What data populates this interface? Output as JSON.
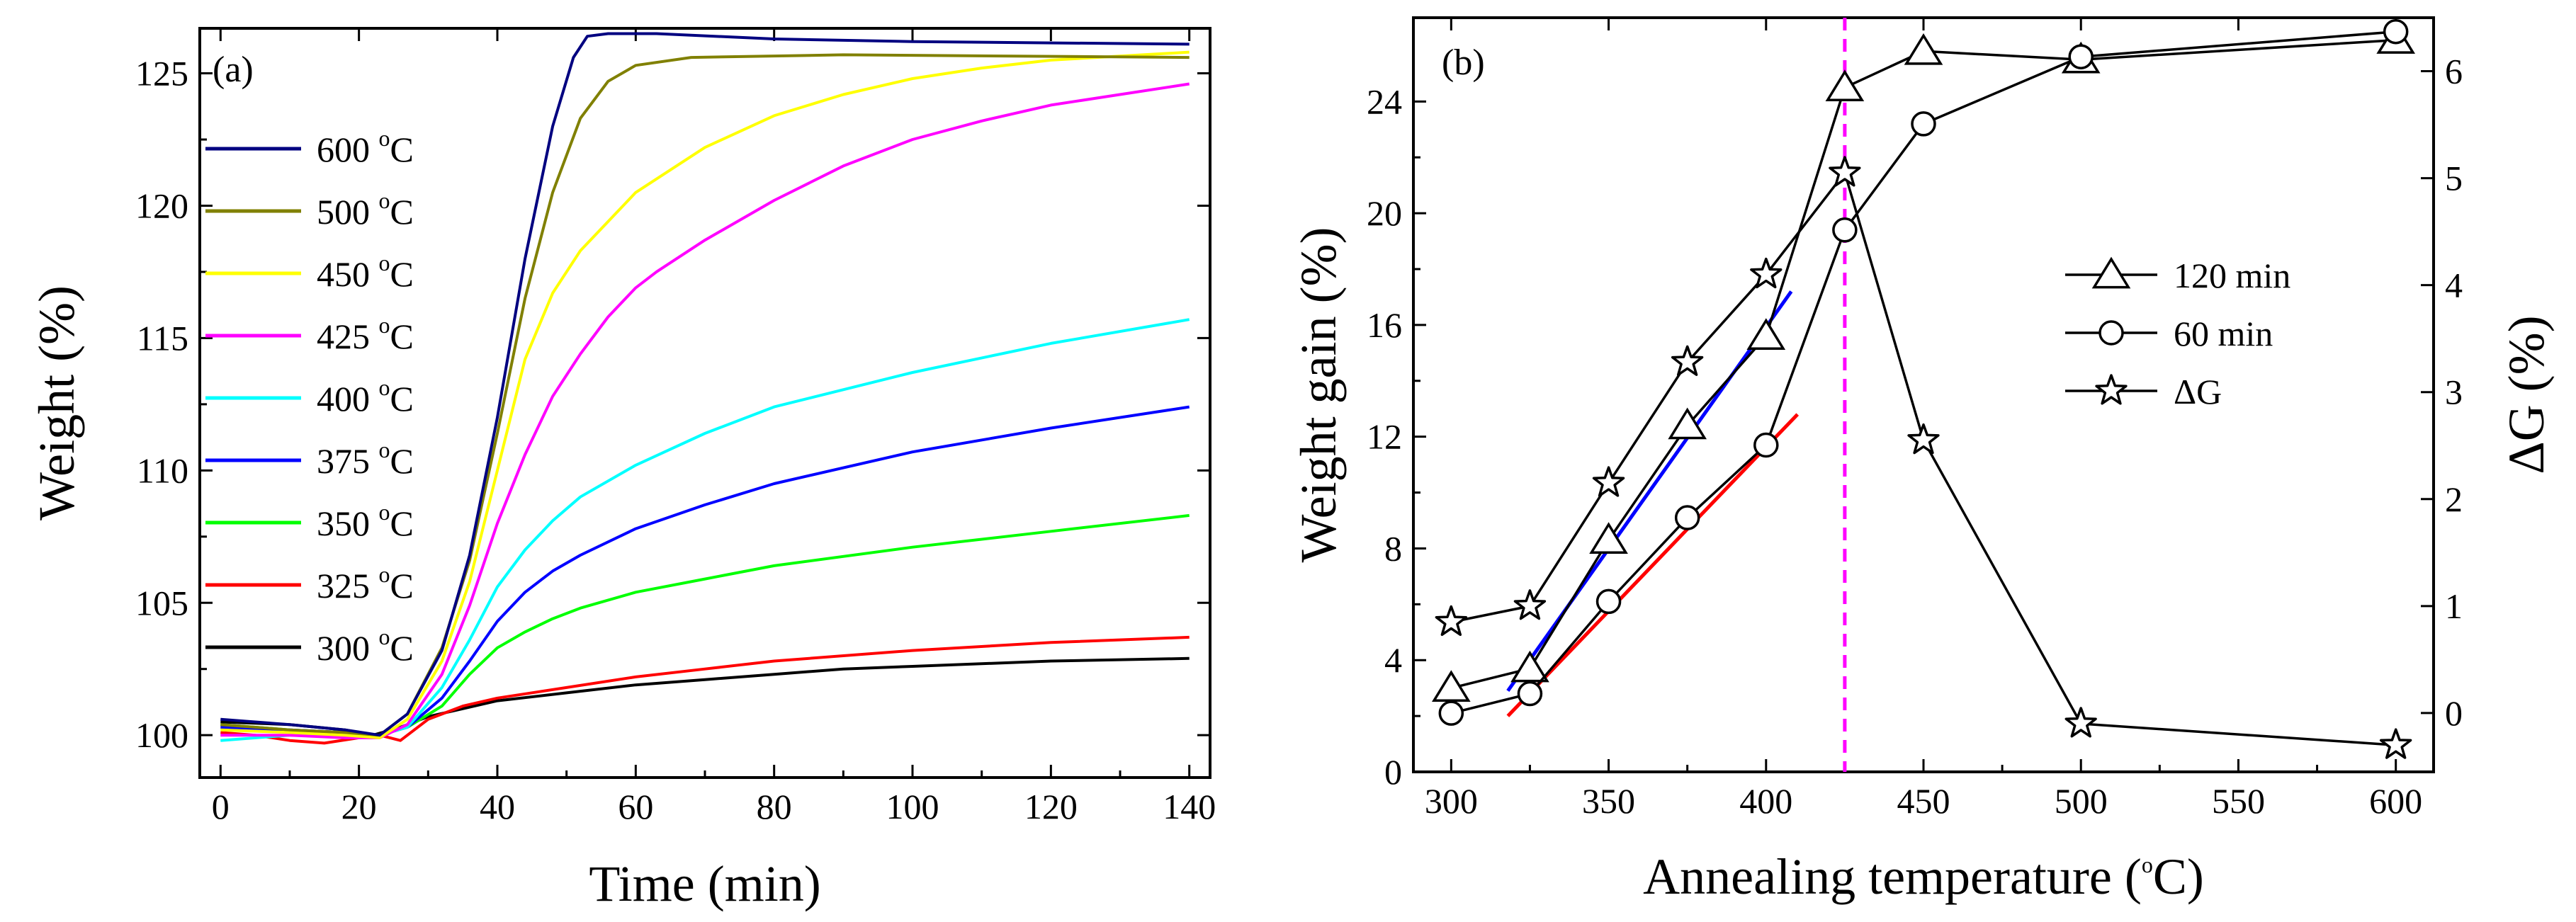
{
  "chart_data": [
    {
      "panel": "(a)",
      "type": "line",
      "xlabel": "Time (min)",
      "ylabel": "Weight (%)",
      "xlim": [
        -3,
        143
      ],
      "ylim": [
        98.4,
        126.7
      ],
      "xticks": [
        0,
        20,
        40,
        60,
        80,
        100,
        120,
        140
      ],
      "yticks": [
        100,
        105,
        110,
        115,
        120,
        125
      ],
      "legend_position": "upper-left",
      "legend_unit": "C",
      "legend_degree": "o",
      "series": [
        {
          "name": "600",
          "color": "#000080",
          "points": [
            [
              0,
              100.6
            ],
            [
              10,
              100.4
            ],
            [
              18,
              100.2
            ],
            [
              23,
              100.0
            ],
            [
              27,
              100.8
            ],
            [
              32,
              103.2
            ],
            [
              36,
              106.8
            ],
            [
              40,
              112.0
            ],
            [
              44,
              118.0
            ],
            [
              48,
              123.0
            ],
            [
              51,
              125.6
            ],
            [
              53,
              126.4
            ],
            [
              56,
              126.5
            ],
            [
              63,
              126.5
            ],
            [
              80,
              126.3
            ],
            [
              100,
              126.2
            ],
            [
              140,
              126.1
            ]
          ]
        },
        {
          "name": "500",
          "color": "#808000",
          "points": [
            [
              0,
              100.4
            ],
            [
              10,
              100.2
            ],
            [
              18,
              100.1
            ],
            [
              23,
              100.0
            ],
            [
              27,
              100.8
            ],
            [
              32,
              103.3
            ],
            [
              36,
              106.6
            ],
            [
              40,
              111.4
            ],
            [
              44,
              116.5
            ],
            [
              48,
              120.5
            ],
            [
              52,
              123.3
            ],
            [
              56,
              124.7
            ],
            [
              60,
              125.3
            ],
            [
              68,
              125.6
            ],
            [
              90,
              125.7
            ],
            [
              140,
              125.6
            ]
          ]
        },
        {
          "name": "450",
          "color": "#ffff00",
          "points": [
            [
              0,
              100.2
            ],
            [
              10,
              100.1
            ],
            [
              18,
              100.0
            ],
            [
              23,
              99.9
            ],
            [
              27,
              100.6
            ],
            [
              32,
              102.8
            ],
            [
              36,
              105.8
            ],
            [
              40,
              110.0
            ],
            [
              44,
              114.2
            ],
            [
              48,
              116.7
            ],
            [
              52,
              118.3
            ],
            [
              56,
              119.4
            ],
            [
              60,
              120.5
            ],
            [
              70,
              122.2
            ],
            [
              80,
              123.4
            ],
            [
              90,
              124.2
            ],
            [
              100,
              124.8
            ],
            [
              110,
              125.2
            ],
            [
              120,
              125.5
            ],
            [
              140,
              125.8
            ]
          ]
        },
        {
          "name": "425",
          "color": "#ff00ff",
          "points": [
            [
              0,
              100.0
            ],
            [
              10,
              100.0
            ],
            [
              18,
              99.9
            ],
            [
              23,
              99.9
            ],
            [
              27,
              100.4
            ],
            [
              32,
              102.3
            ],
            [
              36,
              104.9
            ],
            [
              40,
              108.0
            ],
            [
              44,
              110.6
            ],
            [
              48,
              112.8
            ],
            [
              52,
              114.4
            ],
            [
              56,
              115.8
            ],
            [
              60,
              116.9
            ],
            [
              63,
              117.5
            ],
            [
              70,
              118.7
            ],
            [
              80,
              120.2
            ],
            [
              90,
              121.5
            ],
            [
              100,
              122.5
            ],
            [
              110,
              123.2
            ],
            [
              120,
              123.8
            ],
            [
              140,
              124.6
            ]
          ]
        },
        {
          "name": "400",
          "color": "#00ffff",
          "points": [
            [
              0,
              99.8
            ],
            [
              10,
              100.0
            ],
            [
              18,
              100.0
            ],
            [
              23,
              100.0
            ],
            [
              27,
              100.3
            ],
            [
              32,
              101.8
            ],
            [
              36,
              103.6
            ],
            [
              40,
              105.6
            ],
            [
              44,
              107.0
            ],
            [
              48,
              108.1
            ],
            [
              52,
              109.0
            ],
            [
              60,
              110.2
            ],
            [
              70,
              111.4
            ],
            [
              80,
              112.4
            ],
            [
              100,
              113.7
            ],
            [
              120,
              114.8
            ],
            [
              140,
              115.7
            ]
          ]
        },
        {
          "name": "375",
          "color": "#0000ff",
          "points": [
            [
              0,
              100.3
            ],
            [
              10,
              100.2
            ],
            [
              18,
              100.1
            ],
            [
              23,
              100.0
            ],
            [
              27,
              100.3
            ],
            [
              32,
              101.4
            ],
            [
              36,
              102.8
            ],
            [
              40,
              104.3
            ],
            [
              44,
              105.4
            ],
            [
              48,
              106.2
            ],
            [
              52,
              106.8
            ],
            [
              60,
              107.8
            ],
            [
              70,
              108.7
            ],
            [
              80,
              109.5
            ],
            [
              100,
              110.7
            ],
            [
              120,
              111.6
            ],
            [
              140,
              112.4
            ]
          ]
        },
        {
          "name": "350",
          "color": "#00ff00",
          "points": [
            [
              0,
              100.4
            ],
            [
              10,
              100.2
            ],
            [
              18,
              100.1
            ],
            [
              23,
              100.0
            ],
            [
              27,
              100.3
            ],
            [
              32,
              101.1
            ],
            [
              36,
              102.3
            ],
            [
              40,
              103.3
            ],
            [
              44,
              103.9
            ],
            [
              48,
              104.4
            ],
            [
              52,
              104.8
            ],
            [
              60,
              105.4
            ],
            [
              70,
              105.9
            ],
            [
              80,
              106.4
            ],
            [
              100,
              107.1
            ],
            [
              120,
              107.7
            ],
            [
              140,
              108.3
            ]
          ]
        },
        {
          "name": "325",
          "color": "#ff0000",
          "points": [
            [
              0,
              100.1
            ],
            [
              5,
              100.0
            ],
            [
              10,
              99.8
            ],
            [
              15,
              99.7
            ],
            [
              20,
              99.9
            ],
            [
              23,
              100.0
            ],
            [
              26,
              99.8
            ],
            [
              30,
              100.6
            ],
            [
              35,
              101.1
            ],
            [
              40,
              101.4
            ],
            [
              50,
              101.8
            ],
            [
              60,
              102.2
            ],
            [
              70,
              102.5
            ],
            [
              80,
              102.8
            ],
            [
              100,
              103.2
            ],
            [
              120,
              103.5
            ],
            [
              140,
              103.7
            ]
          ]
        },
        {
          "name": "300",
          "color": "#000000",
          "points": [
            [
              0,
              100.5
            ],
            [
              10,
              100.4
            ],
            [
              18,
              100.2
            ],
            [
              22,
              100.0
            ],
            [
              26,
              100.3
            ],
            [
              30,
              100.7
            ],
            [
              35,
              101.0
            ],
            [
              40,
              101.3
            ],
            [
              50,
              101.6
            ],
            [
              60,
              101.9
            ],
            [
              70,
              102.1
            ],
            [
              80,
              102.3
            ],
            [
              90,
              102.5
            ],
            [
              100,
              102.6
            ],
            [
              120,
              102.8
            ],
            [
              140,
              102.9
            ]
          ]
        }
      ]
    },
    {
      "panel": "(b)",
      "type": "line",
      "xlabel": "Annealing temperature (",
      "xlabel_degree": "o",
      "xlabel_end": "C)",
      "ylabel": "Weight gain (%)",
      "y2label": "ΔG (%)",
      "xlim": [
        288,
        612
      ],
      "ylim": [
        0,
        27
      ],
      "y2lim": [
        -0.55,
        6.5
      ],
      "xticks": [
        300,
        350,
        400,
        450,
        500,
        550,
        600
      ],
      "yticks": [
        0,
        4,
        8,
        12,
        16,
        20,
        24
      ],
      "y2ticks": [
        0,
        1,
        2,
        3,
        4,
        5,
        6
      ],
      "vline_x": 425,
      "legend_position": "center-right",
      "series": [
        {
          "name": "120 min",
          "marker": "triangle",
          "axis": "left",
          "x": [
            300,
            325,
            350,
            375,
            400,
            425,
            450,
            500,
            600
          ],
          "y": [
            3.0,
            3.7,
            8.3,
            12.4,
            15.6,
            24.5,
            25.8,
            25.5,
            26.2
          ]
        },
        {
          "name": "60 min",
          "marker": "circle",
          "axis": "left",
          "x": [
            300,
            325,
            350,
            375,
            400,
            425,
            450,
            500,
            600
          ],
          "y": [
            2.1,
            2.8,
            6.1,
            9.1,
            11.7,
            19.4,
            23.2,
            25.6,
            26.5
          ]
        },
        {
          "name": "ΔG",
          "marker": "star",
          "axis": "right",
          "x": [
            300,
            325,
            350,
            375,
            400,
            425,
            450,
            500,
            600
          ],
          "y": [
            0.85,
            1.0,
            2.15,
            3.28,
            4.1,
            5.05,
            2.55,
            -0.1,
            -0.3
          ]
        }
      ],
      "fits": [
        {
          "color": "#0000ff",
          "x": [
            318,
            408
          ],
          "y": [
            2.9,
            17.2
          ]
        },
        {
          "color": "#ff0000",
          "x": [
            318,
            410
          ],
          "y": [
            2.0,
            12.8
          ]
        }
      ]
    }
  ]
}
